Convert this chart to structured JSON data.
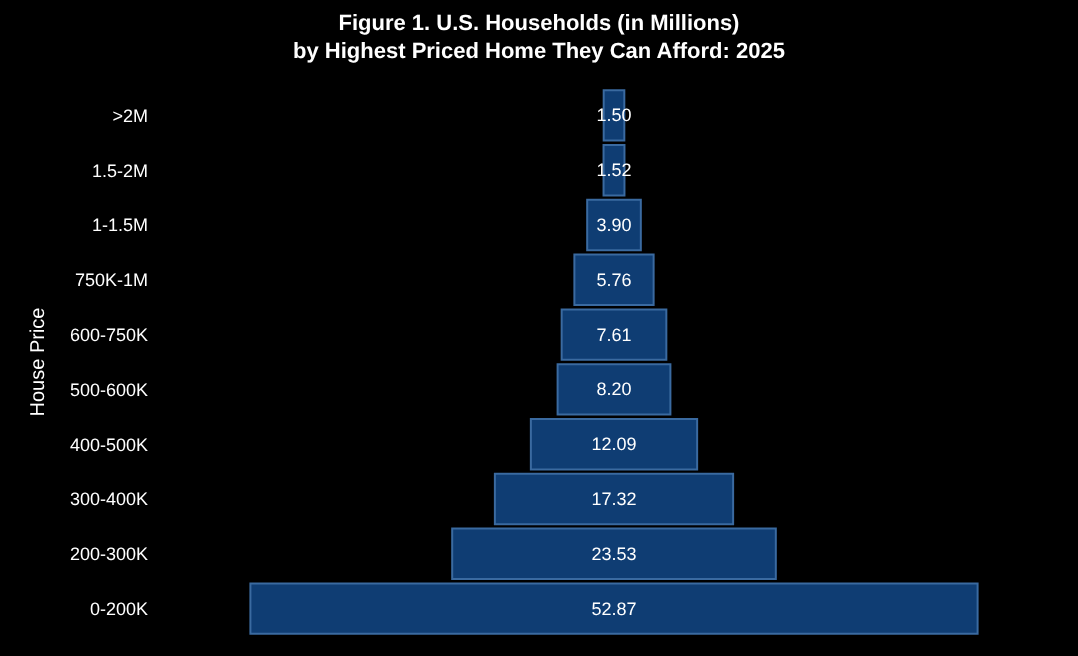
{
  "chart_data": {
    "type": "other",
    "title": "Figure 1. U.S. Households (in Millions)\nby Highest Priced Home They Can Afford: 2025",
    "ylabel": "House Price",
    "categories": [
      ">2M",
      "1.5-2M",
      "1-1.5M",
      "750K-1M",
      "600-750K",
      "500-600K",
      "400-500K",
      "300-400K",
      "200-300K",
      "0-200K"
    ],
    "values": [
      1.5,
      1.52,
      3.9,
      5.76,
      7.61,
      8.2,
      12.09,
      17.32,
      23.53,
      52.87
    ],
    "value_labels": [
      "1.50",
      "1.52",
      "3.90",
      "5.76",
      "7.61",
      "8.20",
      "12.09",
      "17.32",
      "23.53",
      "52.87"
    ],
    "color": "#0f3d73"
  }
}
